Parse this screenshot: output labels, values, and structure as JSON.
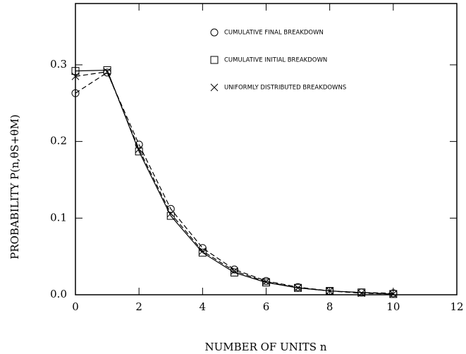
{
  "chart_data": {
    "type": "line",
    "xlabel": "NUMBER OF UNITS n",
    "ylabel": "PROBABILITY P(n,θS+θM)",
    "x": [
      0,
      1,
      2,
      3,
      4,
      5,
      6,
      7,
      8,
      9,
      10
    ],
    "series": [
      {
        "name": "CUMULATIVE FINAL BREAKDOWN",
        "marker": "circle",
        "dashed": true,
        "color": "#000000",
        "values": [
          0.263,
          0.29,
          0.196,
          0.112,
          0.061,
          0.033,
          0.018,
          0.01,
          0.005,
          0.003,
          0.002
        ]
      },
      {
        "name": "CUMULATIVE INITIAL BREAKDOWN",
        "marker": "square",
        "dashed": false,
        "color": "#000000",
        "values": [
          0.292,
          0.293,
          0.187,
          0.103,
          0.055,
          0.029,
          0.016,
          0.009,
          0.005,
          0.003,
          0.001
        ]
      },
      {
        "name": "UNIFORMLY DISTRIBUTED BREAKDOWNS",
        "marker": "cross",
        "dashed": true,
        "color": "#000000",
        "values": [
          0.285,
          0.291,
          0.19,
          0.106,
          0.057,
          0.031,
          0.017,
          0.009,
          0.005,
          0.002,
          0.001
        ]
      }
    ],
    "xlim": [
      0,
      12
    ],
    "xticks": [
      0,
      2,
      4,
      6,
      8,
      10,
      12
    ],
    "ylim": [
      0,
      0.38
    ],
    "yticks": [
      {
        "value": 0,
        "label": "0.0"
      },
      0.1,
      0.2,
      0.3
    ],
    "legend": "upper right"
  }
}
